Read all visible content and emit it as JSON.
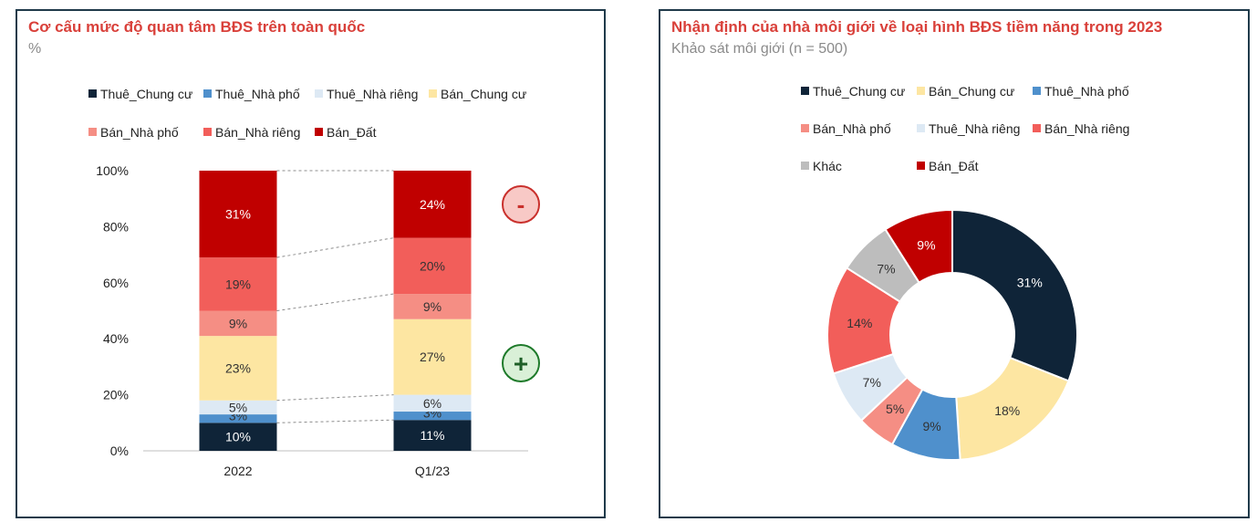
{
  "left_chart": {
    "title": "Cơ cấu mức độ quan tâm BĐS trên toàn quốc",
    "subtitle": "%",
    "minus_label": "-",
    "plus_label": "+",
    "chart_data": {
      "type": "bar",
      "stacked": true,
      "categories": [
        "2022",
        "Q1/23"
      ],
      "ylim": [
        0,
        100
      ],
      "yticks": [
        "0%",
        "20%",
        "40%",
        "60%",
        "80%",
        "100%"
      ],
      "legend_position": "top",
      "series": [
        {
          "name": "Thuê_Chung cư",
          "values": [
            10,
            11
          ],
          "labels": [
            "10%",
            "11%"
          ],
          "color": "#0f2438",
          "label_color": "#ffffff"
        },
        {
          "name": "Thuê_Nhà phố",
          "values": [
            3,
            3
          ],
          "labels": [
            "3%",
            "3%"
          ],
          "color": "#4f90cc",
          "label_color": "#333333"
        },
        {
          "name": "Thuê_Nhà riêng",
          "values": [
            5,
            6
          ],
          "labels": [
            "5%",
            "6%"
          ],
          "color": "#dde9f4",
          "label_color": "#333333"
        },
        {
          "name": "Bán_Chung cư",
          "values": [
            23,
            27
          ],
          "labels": [
            "23%",
            "27%"
          ],
          "color": "#fde6a2",
          "label_color": "#333333"
        },
        {
          "name": "Bán_Nhà phố",
          "values": [
            9,
            9
          ],
          "labels": [
            "9%",
            "9%"
          ],
          "color": "#f58e84",
          "label_color": "#333333"
        },
        {
          "name": "Bán_Nhà riêng",
          "values": [
            19,
            20
          ],
          "labels": [
            "19%",
            "20%"
          ],
          "color": "#f25e5a",
          "label_color": "#333333"
        },
        {
          "name": "Bán_Đất",
          "values": [
            31,
            24
          ],
          "labels": [
            "31%",
            "24%"
          ],
          "color": "#c00000",
          "label_color": "#ffffff"
        }
      ]
    }
  },
  "right_chart": {
    "title": "Nhận định của nhà môi giới về loại hình BĐS tiềm năng trong 2023",
    "subtitle": "Khảo sát môi giới (n = 500)",
    "chart_data": {
      "type": "pie",
      "donut": true,
      "legend_position": "top",
      "legend_order": [
        "Thuê_Chung cư",
        "Bán_Chung cư",
        "Thuê_Nhà phố",
        "Bán_Nhà phố",
        "Thuê_Nhà riêng",
        "Bán_Nhà riêng",
        "Khác",
        "Bán_Đất"
      ],
      "slices": [
        {
          "name": "Thuê_Chung cư",
          "value": 31,
          "label": "31%",
          "color": "#0f2438",
          "label_color": "#ffffff"
        },
        {
          "name": "Bán_Chung cư",
          "value": 18,
          "label": "18%",
          "color": "#fde6a2",
          "label_color": "#333333"
        },
        {
          "name": "Thuê_Nhà phố",
          "value": 9,
          "label": "9%",
          "color": "#4f90cc",
          "label_color": "#333333"
        },
        {
          "name": "Bán_Nhà phố",
          "value": 5,
          "label": "5%",
          "color": "#f58e84",
          "label_color": "#333333"
        },
        {
          "name": "Thuê_Nhà riêng",
          "value": 7,
          "label": "7%",
          "color": "#dde9f4",
          "label_color": "#333333"
        },
        {
          "name": "Bán_Nhà riêng",
          "value": 14,
          "label": "14%",
          "color": "#f25e5a",
          "label_color": "#333333"
        },
        {
          "name": "Khác",
          "value": 7,
          "label": "7%",
          "color": "#bdbdbd",
          "label_color": "#333333"
        },
        {
          "name": "Bán_Đất",
          "value": 9,
          "label": "9%",
          "color": "#c00000",
          "label_color": "#ffffff"
        }
      ]
    }
  }
}
